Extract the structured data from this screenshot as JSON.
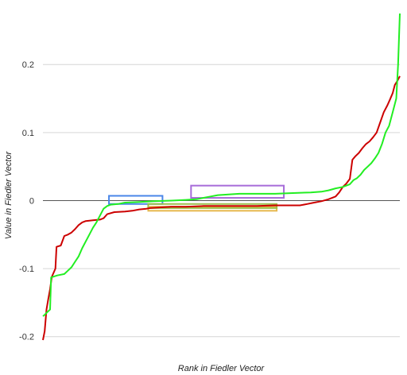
{
  "chart_data": {
    "type": "line",
    "title": "",
    "xlabel": "Rank in Fiedler Vector",
    "ylabel": "Value in Fiedler Vector",
    "xlim": [
      0,
      100
    ],
    "ylim": [
      -0.205,
      0.275
    ],
    "yticks": [
      -0.2,
      -0.1,
      0,
      0.1,
      0.2
    ],
    "ytick_labels": [
      "-0.2",
      "-0.1",
      "0",
      "0.1",
      "0.2"
    ],
    "grid": true,
    "zero_line": true,
    "legend": "none",
    "series": [
      {
        "color": "#cc0000",
        "points": [
          [
            0,
            -0.205
          ],
          [
            0.5,
            -0.192
          ],
          [
            1,
            -0.16
          ],
          [
            1.5,
            -0.145
          ],
          [
            2,
            -0.13
          ],
          [
            2.5,
            -0.112
          ],
          [
            3.5,
            -0.1
          ],
          [
            3.8,
            -0.068
          ],
          [
            5,
            -0.066
          ],
          [
            6,
            -0.052
          ],
          [
            7,
            -0.05
          ],
          [
            8,
            -0.047
          ],
          [
            9,
            -0.042
          ],
          [
            10,
            -0.036
          ],
          [
            11,
            -0.032
          ],
          [
            12,
            -0.03
          ],
          [
            14,
            -0.029
          ],
          [
            16,
            -0.028
          ],
          [
            17,
            -0.026
          ],
          [
            18,
            -0.02
          ],
          [
            20,
            -0.017
          ],
          [
            23,
            -0.016
          ],
          [
            25,
            -0.015
          ],
          [
            27,
            -0.013
          ],
          [
            29,
            -0.012
          ],
          [
            30,
            -0.011
          ],
          [
            33,
            -0.01
          ],
          [
            36,
            -0.009
          ],
          [
            40,
            -0.009
          ],
          [
            45,
            -0.008
          ],
          [
            50,
            -0.008
          ],
          [
            55,
            -0.008
          ],
          [
            60,
            -0.008
          ],
          [
            65,
            -0.007
          ],
          [
            70,
            -0.007
          ],
          [
            72,
            -0.007
          ],
          [
            74,
            -0.005
          ],
          [
            76,
            -0.003
          ],
          [
            78,
            -0.001
          ],
          [
            80,
            0.002
          ],
          [
            82,
            0.006
          ],
          [
            83,
            0.012
          ],
          [
            84,
            0.02
          ],
          [
            85,
            0.025
          ],
          [
            86,
            0.032
          ],
          [
            86.7,
            0.06
          ],
          [
            87.5,
            0.065
          ],
          [
            88.5,
            0.07
          ],
          [
            89.5,
            0.077
          ],
          [
            90.5,
            0.083
          ],
          [
            91.5,
            0.087
          ],
          [
            92.5,
            0.093
          ],
          [
            93.5,
            0.1
          ],
          [
            94.5,
            0.115
          ],
          [
            95.5,
            0.13
          ],
          [
            96.5,
            0.14
          ],
          [
            97.2,
            0.148
          ],
          [
            98,
            0.158
          ],
          [
            98.6,
            0.17
          ],
          [
            99.3,
            0.176
          ],
          [
            100,
            0.183
          ]
        ]
      },
      {
        "color": "#22ee22",
        "points": [
          [
            0,
            -0.17
          ],
          [
            0.5,
            -0.168
          ],
          [
            1,
            -0.165
          ],
          [
            2,
            -0.16
          ],
          [
            2.3,
            -0.113
          ],
          [
            4,
            -0.11
          ],
          [
            6,
            -0.108
          ],
          [
            7,
            -0.103
          ],
          [
            8,
            -0.098
          ],
          [
            9,
            -0.09
          ],
          [
            10,
            -0.082
          ],
          [
            11,
            -0.07
          ],
          [
            12,
            -0.06
          ],
          [
            13,
            -0.05
          ],
          [
            14,
            -0.04
          ],
          [
            15,
            -0.032
          ],
          [
            16,
            -0.022
          ],
          [
            17,
            -0.012
          ],
          [
            18,
            -0.008
          ],
          [
            19,
            -0.006
          ],
          [
            21,
            -0.005
          ],
          [
            23,
            -0.003
          ],
          [
            27,
            -0.002
          ],
          [
            31,
            -0.001
          ],
          [
            36,
            0
          ],
          [
            40,
            0.001
          ],
          [
            43,
            0.002
          ],
          [
            45,
            0.004
          ],
          [
            47,
            0.006
          ],
          [
            49,
            0.008
          ],
          [
            52,
            0.009
          ],
          [
            55,
            0.01
          ],
          [
            60,
            0.01
          ],
          [
            65,
            0.01
          ],
          [
            70,
            0.011
          ],
          [
            75,
            0.012
          ],
          [
            78,
            0.013
          ],
          [
            80,
            0.015
          ],
          [
            82,
            0.018
          ],
          [
            84,
            0.02
          ],
          [
            86,
            0.024
          ],
          [
            87,
            0.03
          ],
          [
            88,
            0.033
          ],
          [
            89,
            0.038
          ],
          [
            90,
            0.045
          ],
          [
            91,
            0.05
          ],
          [
            92,
            0.055
          ],
          [
            93,
            0.062
          ],
          [
            94,
            0.07
          ],
          [
            95,
            0.083
          ],
          [
            96,
            0.1
          ],
          [
            97,
            0.11
          ],
          [
            98,
            0.13
          ],
          [
            99,
            0.15
          ],
          [
            99.5,
            0.2
          ],
          [
            100,
            0.275
          ]
        ]
      }
    ],
    "annotations": [
      {
        "kind": "rect",
        "color": "#4a86e8",
        "x": [
          18.5,
          33.5
        ],
        "y": [
          -0.005,
          0.007
        ]
      },
      {
        "kind": "rect",
        "color": "#a66bd9",
        "x": [
          41.5,
          67.5
        ],
        "y": [
          0.004,
          0.022
        ]
      },
      {
        "kind": "rect",
        "color": "#e6b84d",
        "x": [
          29.5,
          65.5
        ],
        "y": [
          -0.015,
          -0.009
        ]
      },
      {
        "kind": "rect",
        "color": "#9cc04b",
        "x": [
          29.5,
          65.5
        ],
        "y": [
          -0.011,
          -0.005
        ]
      }
    ]
  }
}
